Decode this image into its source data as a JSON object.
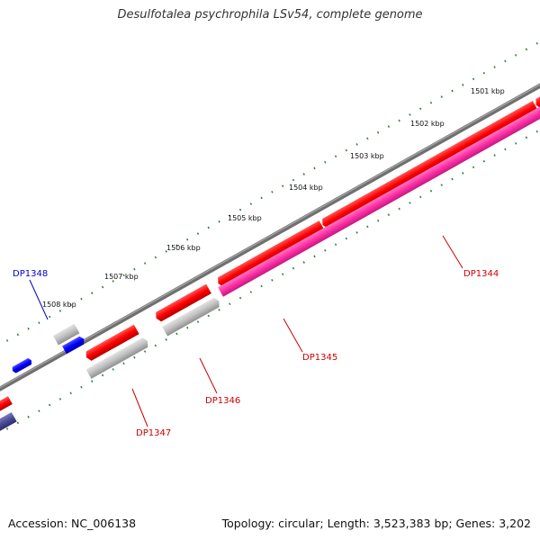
{
  "title": "Desulfotalea psychrophila LSv54, complete genome",
  "footer": {
    "accession": "Accession: NC_006138",
    "summary": "Topology: circular; Length: 3,523,383 bp; Genes: 3,202"
  },
  "ruler_labels": [
    "1501 kbp",
    "1502 kbp",
    "1503 kbp",
    "1504 kbp",
    "1505 kbp",
    "1506 kbp",
    "1507 kbp",
    "1508 kbp"
  ],
  "genes": [
    {
      "name": "DP1344",
      "color": "#cc0000"
    },
    {
      "name": "DP1345",
      "color": "#cc0000"
    },
    {
      "name": "DP1346",
      "color": "#cc0000"
    },
    {
      "name": "DP1347",
      "color": "#cc0000"
    },
    {
      "name": "DP1348",
      "color": "#0000cc"
    }
  ],
  "colors": {
    "backbone": "#808080",
    "cds": "#ff0000",
    "gene_track": "#ff33aa",
    "grey_feature": "#bdbdbd",
    "blue_feature": "#0000ff",
    "dark_blue_feature": "#4a4a99",
    "ticks": "#2e7d32"
  }
}
